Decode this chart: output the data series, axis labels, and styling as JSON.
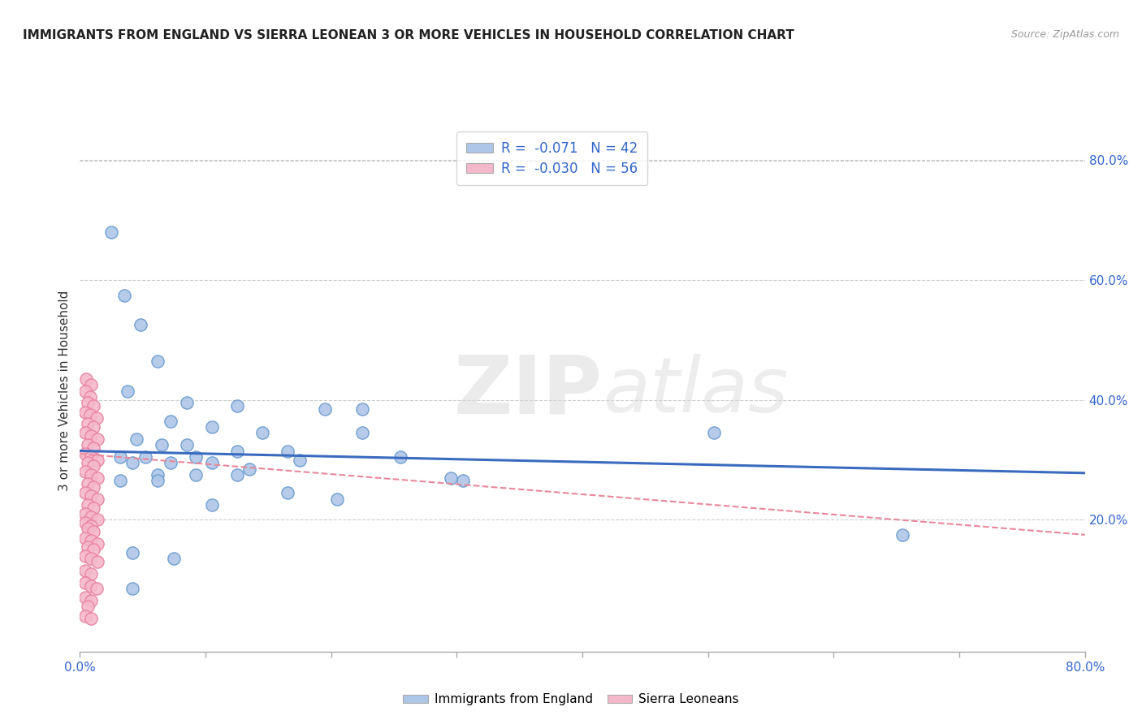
{
  "title": "IMMIGRANTS FROM ENGLAND VS SIERRA LEONEAN 3 OR MORE VEHICLES IN HOUSEHOLD CORRELATION CHART",
  "source": "Source: ZipAtlas.com",
  "ylabel": "3 or more Vehicles in Household",
  "ylabel_right_ticks": [
    "20.0%",
    "40.0%",
    "60.0%",
    "80.0%"
  ],
  "ylabel_right_vals": [
    0.2,
    0.4,
    0.6,
    0.8
  ],
  "xmin": 0.0,
  "xmax": 0.8,
  "ymin": -0.02,
  "ymax": 0.85,
  "legend_r1": "R =  -0.071   N = 42",
  "legend_r2": "R =  -0.030   N = 56",
  "watermark_zip": "ZIP",
  "watermark_atlas": "atlas",
  "blue_scatter": [
    [
      0.025,
      0.68
    ],
    [
      0.035,
      0.575
    ],
    [
      0.048,
      0.525
    ],
    [
      0.062,
      0.465
    ],
    [
      0.038,
      0.415
    ],
    [
      0.085,
      0.395
    ],
    [
      0.125,
      0.39
    ],
    [
      0.195,
      0.385
    ],
    [
      0.225,
      0.385
    ],
    [
      0.072,
      0.365
    ],
    [
      0.105,
      0.355
    ],
    [
      0.145,
      0.345
    ],
    [
      0.225,
      0.345
    ],
    [
      0.045,
      0.335
    ],
    [
      0.065,
      0.325
    ],
    [
      0.085,
      0.325
    ],
    [
      0.125,
      0.315
    ],
    [
      0.165,
      0.315
    ],
    [
      0.032,
      0.305
    ],
    [
      0.052,
      0.305
    ],
    [
      0.092,
      0.305
    ],
    [
      0.255,
      0.305
    ],
    [
      0.042,
      0.295
    ],
    [
      0.072,
      0.295
    ],
    [
      0.105,
      0.295
    ],
    [
      0.135,
      0.285
    ],
    [
      0.062,
      0.275
    ],
    [
      0.092,
      0.275
    ],
    [
      0.125,
      0.275
    ],
    [
      0.032,
      0.265
    ],
    [
      0.062,
      0.265
    ],
    [
      0.305,
      0.265
    ],
    [
      0.175,
      0.3
    ],
    [
      0.295,
      0.27
    ],
    [
      0.505,
      0.345
    ],
    [
      0.655,
      0.175
    ],
    [
      0.042,
      0.145
    ],
    [
      0.075,
      0.135
    ],
    [
      0.105,
      0.225
    ],
    [
      0.165,
      0.245
    ],
    [
      0.205,
      0.235
    ],
    [
      0.042,
      0.085
    ]
  ],
  "pink_scatter": [
    [
      0.005,
      0.435
    ],
    [
      0.009,
      0.425
    ],
    [
      0.004,
      0.415
    ],
    [
      0.008,
      0.405
    ],
    [
      0.006,
      0.395
    ],
    [
      0.011,
      0.39
    ],
    [
      0.004,
      0.38
    ],
    [
      0.008,
      0.375
    ],
    [
      0.013,
      0.37
    ],
    [
      0.006,
      0.36
    ],
    [
      0.011,
      0.355
    ],
    [
      0.004,
      0.345
    ],
    [
      0.009,
      0.34
    ],
    [
      0.014,
      0.335
    ],
    [
      0.006,
      0.325
    ],
    [
      0.011,
      0.32
    ],
    [
      0.004,
      0.31
    ],
    [
      0.009,
      0.305
    ],
    [
      0.014,
      0.3
    ],
    [
      0.006,
      0.295
    ],
    [
      0.011,
      0.29
    ],
    [
      0.004,
      0.28
    ],
    [
      0.009,
      0.275
    ],
    [
      0.014,
      0.27
    ],
    [
      0.006,
      0.26
    ],
    [
      0.011,
      0.255
    ],
    [
      0.004,
      0.245
    ],
    [
      0.009,
      0.24
    ],
    [
      0.014,
      0.235
    ],
    [
      0.006,
      0.225
    ],
    [
      0.011,
      0.22
    ],
    [
      0.004,
      0.21
    ],
    [
      0.009,
      0.205
    ],
    [
      0.014,
      0.2
    ],
    [
      0.004,
      0.195
    ],
    [
      0.009,
      0.19
    ],
    [
      0.006,
      0.185
    ],
    [
      0.011,
      0.18
    ],
    [
      0.004,
      0.17
    ],
    [
      0.009,
      0.165
    ],
    [
      0.014,
      0.16
    ],
    [
      0.006,
      0.155
    ],
    [
      0.011,
      0.15
    ],
    [
      0.004,
      0.14
    ],
    [
      0.009,
      0.135
    ],
    [
      0.014,
      0.13
    ],
    [
      0.004,
      0.115
    ],
    [
      0.009,
      0.11
    ],
    [
      0.004,
      0.095
    ],
    [
      0.009,
      0.09
    ],
    [
      0.013,
      0.085
    ],
    [
      0.004,
      0.07
    ],
    [
      0.009,
      0.065
    ],
    [
      0.006,
      0.055
    ],
    [
      0.004,
      0.04
    ],
    [
      0.009,
      0.035
    ]
  ],
  "blue_line_x": [
    0.0,
    0.8
  ],
  "blue_line_y": [
    0.315,
    0.278
  ],
  "pink_line_x": [
    0.0,
    0.8
  ],
  "pink_line_y": [
    0.31,
    0.175
  ],
  "scatter_size": 120,
  "blue_color": "#aec6e8",
  "blue_edge": "#6699cc",
  "pink_color": "#f5b8cb",
  "pink_edge": "#e87fa0",
  "blue_line_color": "#3a6bbf",
  "pink_line_color": "#e8889a",
  "grid_color": "#cccccc",
  "bg_color": "#ffffff"
}
